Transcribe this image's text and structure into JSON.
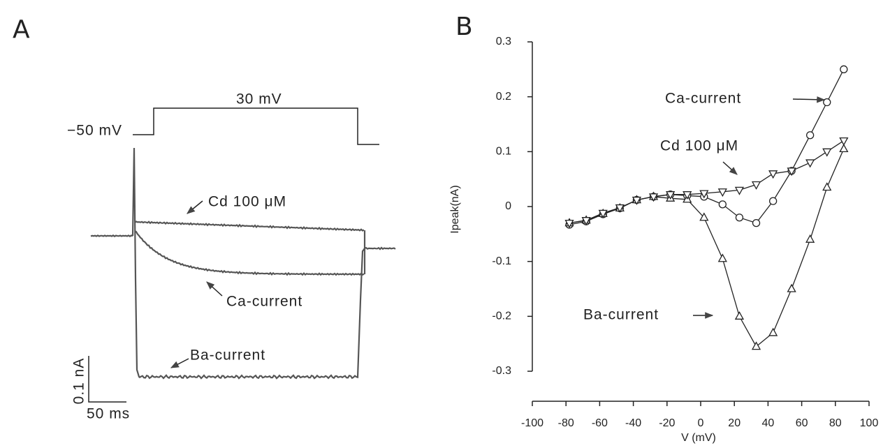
{
  "panel_a": {
    "label": "A",
    "step_level": "30 mV",
    "holding_level": "−50 mV",
    "annotations": [
      "Cd 100 μM",
      "Ca-current",
      "Ba-current"
    ],
    "scale_current": "0.1 nA",
    "scale_time": "50 ms"
  },
  "chart_data": {
    "type": "line",
    "panel_label": "B",
    "x_label": "V (mV)",
    "y_label": "Ipeak(nA)",
    "xlim": [
      -100,
      100
    ],
    "xticks": [
      -100,
      -80,
      -60,
      -40,
      -20,
      0,
      20,
      40,
      60,
      80,
      100
    ],
    "ylim": [
      -0.3,
      0.3
    ],
    "yticks": [
      -0.3,
      -0.2,
      -0.1,
      0,
      0.1,
      0.2,
      0.3
    ],
    "x": [
      -78,
      -68,
      -58,
      -48,
      -38,
      -28,
      -18,
      -8,
      2,
      13,
      23,
      33,
      43,
      54,
      65,
      75,
      85
    ],
    "series": [
      {
        "name": "Ca-current",
        "color": "#222222",
        "marker": "circle",
        "values": [
          -0.033,
          -0.027,
          -0.014,
          -0.003,
          0.012,
          0.018,
          0.022,
          0.02,
          0.018,
          0.004,
          -0.02,
          -0.03,
          0.01,
          0.065,
          0.13,
          0.19,
          0.25
        ]
      },
      {
        "name": "Ba-current",
        "color": "#222222",
        "marker": "triangle-up",
        "values": [
          -0.03,
          -0.025,
          -0.013,
          -0.003,
          0.012,
          0.018,
          0.015,
          0.013,
          -0.02,
          -0.095,
          -0.2,
          -0.255,
          -0.23,
          -0.15,
          -0.06,
          0.035,
          0.105
        ]
      },
      {
        "name": "Cd 100 μM",
        "color": "#222222",
        "marker": "triangle-down",
        "values": [
          -0.03,
          -0.025,
          -0.012,
          -0.002,
          0.012,
          0.018,
          0.022,
          0.022,
          0.024,
          0.027,
          0.03,
          0.04,
          0.06,
          0.065,
          0.08,
          0.1,
          0.12
        ]
      }
    ]
  }
}
